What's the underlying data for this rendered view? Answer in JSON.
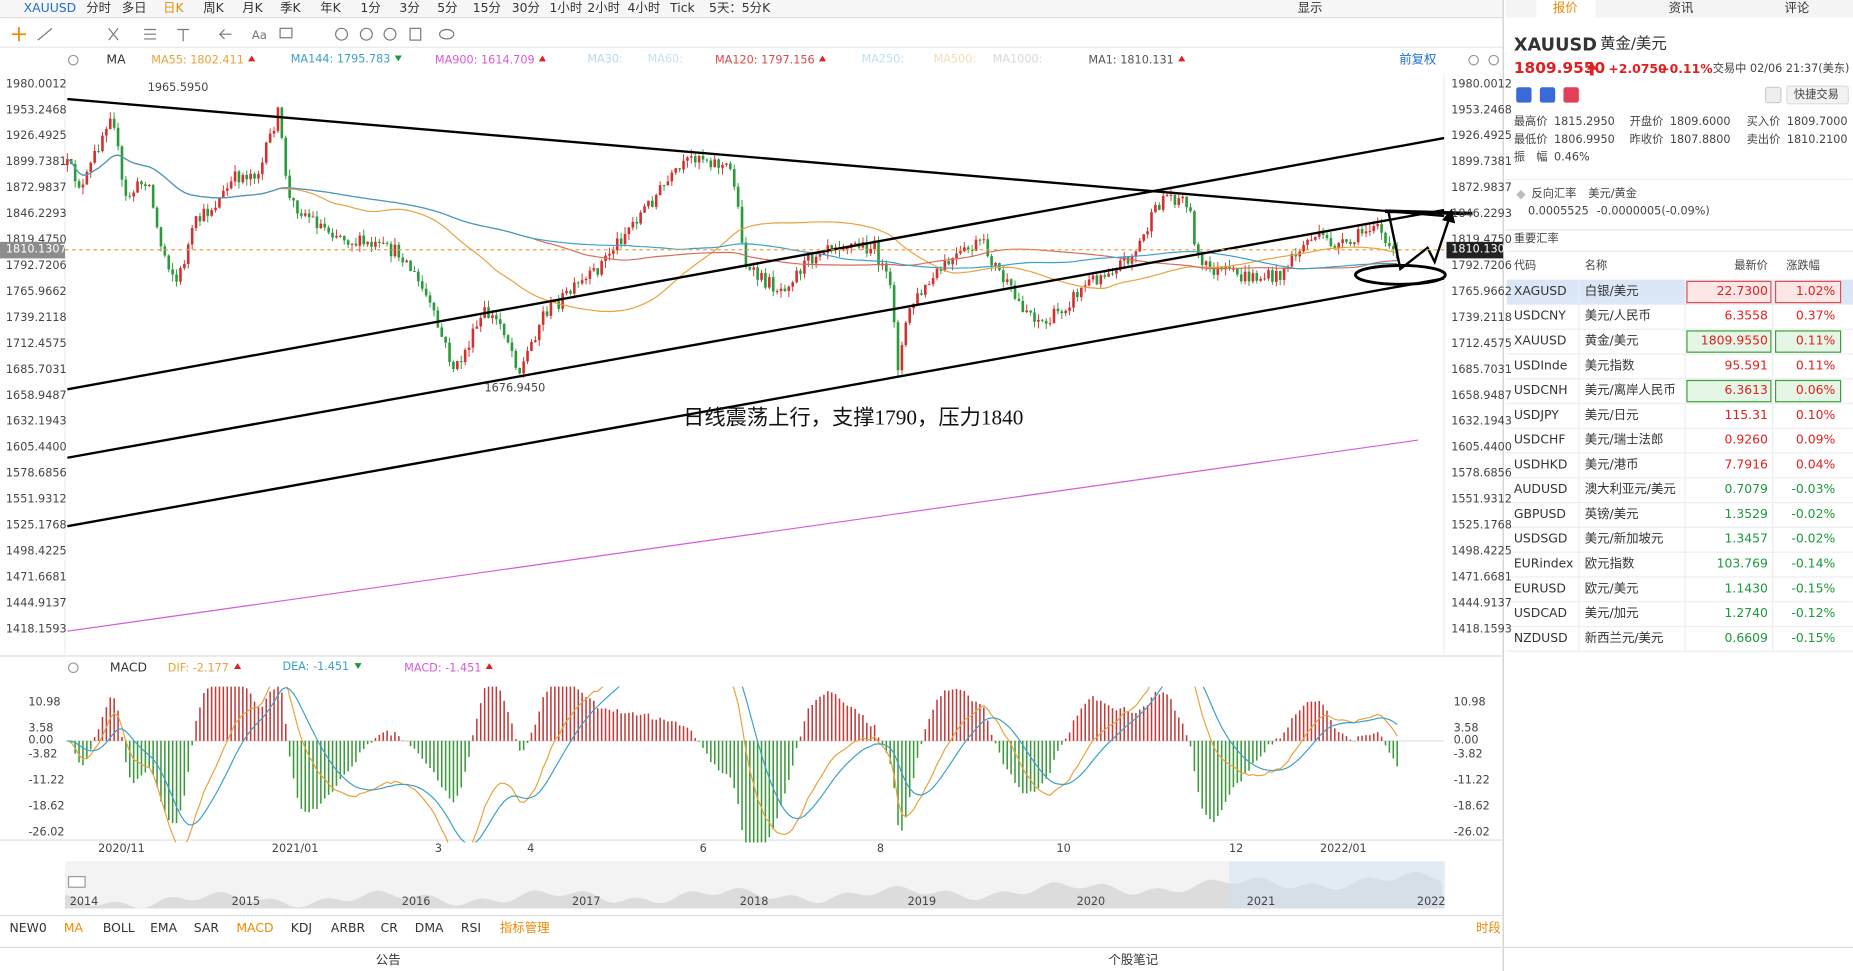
{
  "toolbar": {
    "symbol": "XAUUSD",
    "periods": [
      "分时",
      "多日",
      "日K",
      "周K",
      "月K",
      "季K",
      "年K",
      "1分",
      "3分",
      "5分",
      "15分",
      "30分",
      "1小时",
      "2小时",
      "4小时",
      "Tick",
      "5天：5分K"
    ],
    "display": "显示"
  },
  "chart": {
    "ma_label": "MA",
    "ma_legend": [
      "MA55: 1802.411",
      "MA144: 1795.783",
      "MA900: 1614.709",
      "MA30:",
      "MA60:",
      "MA120: 1797.156",
      "MA250:",
      "MA500:",
      "MA1000:",
      "MA1: 1810.131"
    ],
    "restoration": "前复权",
    "price_axis": [
      "1980.0012",
      "1953.2468",
      "1926.4925",
      "1899.7381",
      "1872.9837",
      "1846.2293",
      "1819.4750",
      "1792.7206",
      "1765.9662",
      "1739.2118",
      "1712.4575",
      "1685.7031",
      "1658.9487",
      "1632.1943",
      "1605.4400",
      "1578.6856",
      "1551.9312",
      "1525.1768",
      "1498.4225",
      "1471.6681",
      "1444.9137",
      "1418.1593"
    ],
    "current_price": "1810.1307",
    "high_label": "1965.5950",
    "low_label": "1676.9450",
    "annotation": "日线震荡上行，支撑1790，压力1840"
  },
  "macd": {
    "label": "MACD",
    "legend": [
      "DIF: -2.177",
      "DEA: -1.451",
      "MACD: -1.451"
    ],
    "axis": [
      "10.98",
      "3.58",
      "0.00",
      "-3.82",
      "-11.22",
      "-18.62",
      "-26.02"
    ]
  },
  "dates": [
    "2020/11",
    "2021/01",
    "3",
    "4",
    "6",
    "8",
    "10",
    "12",
    "2022/01"
  ],
  "navigator_years": [
    "2014",
    "2015",
    "2016",
    "2017",
    "2018",
    "2019",
    "2020",
    "2021",
    "2022"
  ],
  "indicator_tabs": [
    "NEW0",
    "MA",
    "BOLL",
    "EMA",
    "SAR",
    "MACD",
    "KDJ",
    "ARBR",
    "CR",
    "DMA",
    "RSI",
    "指标管理"
  ],
  "period_tab": "时段",
  "footer": {
    "notice": "公告",
    "notes": "个股笔记"
  },
  "quote": {
    "tabs": [
      "报价",
      "资讯",
      "评论"
    ],
    "code": "XAUUSD",
    "name": "黄金/美元",
    "price": "1809.9550",
    "change": "+2.0750",
    "change_pct": "+0.11%",
    "status": "交易中 02/06 21:37(美东)",
    "quick_trade": "快捷交易",
    "stats": [
      {
        "label": "最高价",
        "value": "1815.2950"
      },
      {
        "label": "开盘价",
        "value": "1809.6000"
      },
      {
        "label": "买入价",
        "value": "1809.7000"
      },
      {
        "label": "最低价",
        "value": "1806.9950"
      },
      {
        "label": "昨收价",
        "value": "1807.8800"
      },
      {
        "label": "卖出价",
        "value": "1810.2100"
      },
      {
        "label": "振　幅",
        "value": "0.46%"
      }
    ],
    "reverse": {
      "label": "反向汇率",
      "pair": "美元/黄金",
      "price": "0.0005525",
      "change": "-0.0000005(-0.09%)"
    },
    "table": {
      "title": "重要汇率",
      "headers": [
        "代码",
        "名称",
        "最新价",
        "涨跌幅"
      ],
      "rows": [
        [
          "XAGUSD",
          "白银/美元",
          "22.7300",
          "1.02%"
        ],
        [
          "USDCNY",
          "美元/人民币",
          "6.3558",
          "0.37%"
        ],
        [
          "XAUUSD",
          "黄金/美元",
          "1809.9550",
          "0.11%"
        ],
        [
          "USDInde",
          "美元指数",
          "95.591",
          "0.11%"
        ],
        [
          "USDCNH",
          "美元/离岸人民币",
          "6.3613",
          "0.06%"
        ],
        [
          "USDJPY",
          "美元/日元",
          "115.31",
          "0.10%"
        ],
        [
          "USDCHF",
          "美元/瑞士法郎",
          "0.9260",
          "0.09%"
        ],
        [
          "USDHKD",
          "美元/港币",
          "7.7916",
          "0.04%"
        ],
        [
          "AUDUSD",
          "澳大利亚元/美元",
          "0.7079",
          "-0.03%"
        ],
        [
          "GBPUSD",
          "英镑/美元",
          "1.3529",
          "-0.02%"
        ],
        [
          "USDSGD",
          "美元/新加坡元",
          "1.3457",
          "-0.02%"
        ],
        [
          "EURindex",
          "欧元指数",
          "103.769",
          "-0.14%"
        ],
        [
          "EURUSD",
          "欧元/美元",
          "1.1430",
          "-0.15%"
        ],
        [
          "USDCAD",
          "美元/加元",
          "1.2740",
          "-0.12%"
        ],
        [
          "NZDUSD",
          "新西兰元/美元",
          "0.6609",
          "-0.15%"
        ]
      ]
    }
  }
}
